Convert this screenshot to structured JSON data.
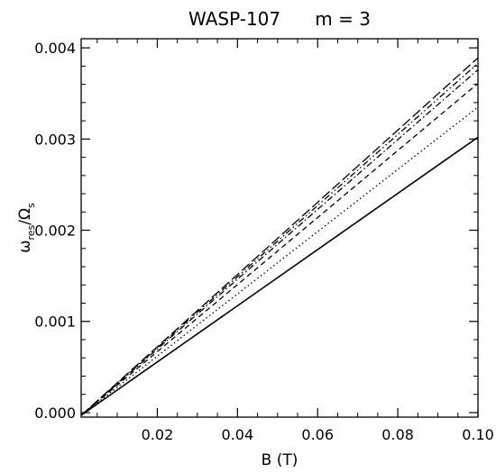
{
  "chart_data": {
    "type": "line",
    "title": "WASP-107      m = 3",
    "xlabel": "B (T)",
    "ylabel": "ω_res/Ω_s",
    "ylabel_main": "ω",
    "ylabel_sub1": "res",
    "ylabel_slash": "/Ω",
    "ylabel_sub2": "s",
    "xlim": [
      0.001,
      0.1
    ],
    "ylim": [
      -5e-05,
      0.0041
    ],
    "x_ticks": [
      0.02,
      0.04,
      0.06,
      0.08,
      0.1
    ],
    "x_tick_labels": [
      "0.02",
      "0.04",
      "0.06",
      "0.08",
      "0.10"
    ],
    "y_ticks": [
      0.0,
      0.001,
      0.002,
      0.003,
      0.004
    ],
    "y_tick_labels": [
      "0.000",
      "0.001",
      "0.002",
      "0.003",
      "0.004"
    ],
    "grid": false,
    "series": [
      {
        "style": "solid",
        "x": [
          0.001,
          0.1
        ],
        "y": [
          -3e-05,
          0.00302
        ]
      },
      {
        "style": "dotted",
        "x": [
          0.001,
          0.1
        ],
        "y": [
          -3e-05,
          0.00335
        ]
      },
      {
        "style": "dashed",
        "x": [
          0.001,
          0.1
        ],
        "y": [
          -3e-05,
          0.00361
        ]
      },
      {
        "style": "dash-dot",
        "x": [
          0.001,
          0.1
        ],
        "y": [
          -3e-05,
          0.00376
        ]
      },
      {
        "style": "dash-dot-dot",
        "x": [
          0.001,
          0.1
        ],
        "y": [
          -3e-05,
          0.00383
        ]
      },
      {
        "style": "long-dash",
        "x": [
          0.001,
          0.1
        ],
        "y": [
          -3e-05,
          0.00389
        ]
      }
    ]
  }
}
